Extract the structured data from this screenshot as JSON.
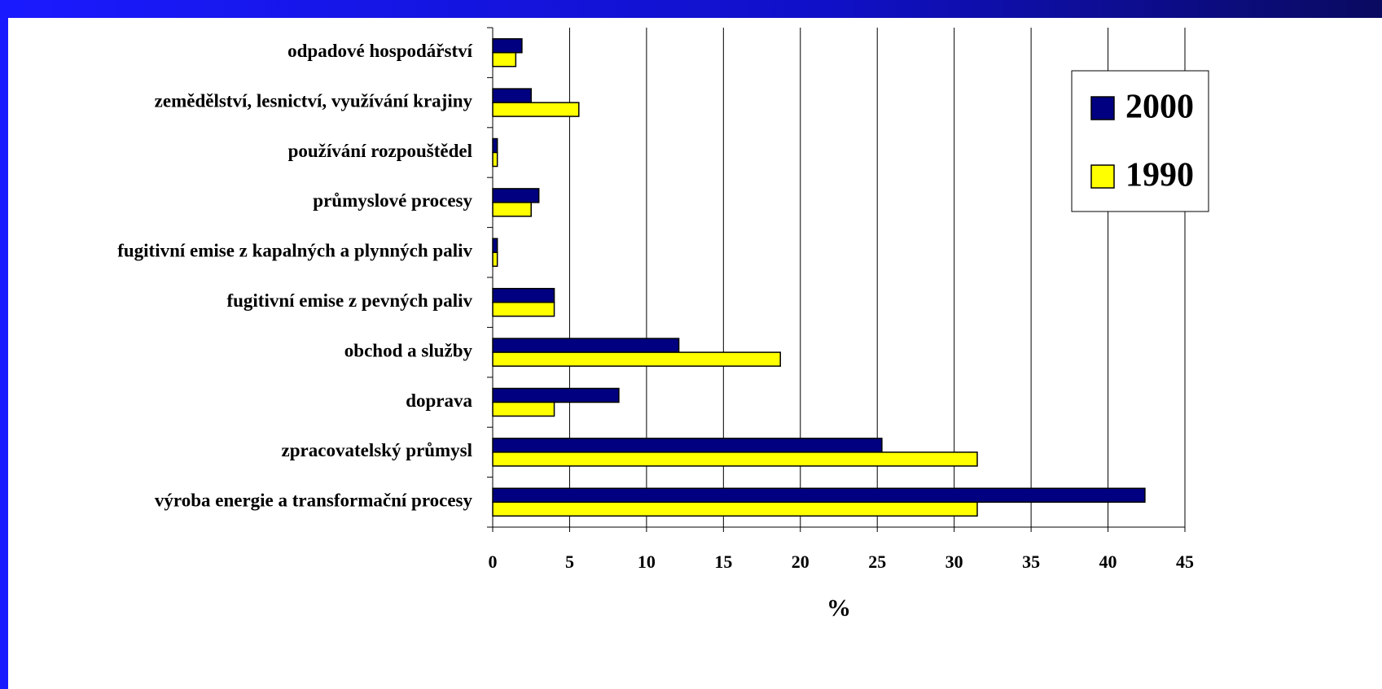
{
  "chart_data": {
    "type": "bar",
    "orientation": "horizontal",
    "categories": [
      "odpadové hospodářství",
      "zemědělství, lesnictví, využívání krajiny",
      "používání rozpouštědel",
      "průmyslové procesy",
      "fugitivní emise z kapalných a plynných paliv",
      "fugitivní emise z pevných paliv",
      "obchod a služby",
      "doprava",
      "zpracovatelský průmysl",
      "výroba energie a transformační procesy"
    ],
    "series": [
      {
        "name": "2000",
        "color": "#000080",
        "values": [
          1.9,
          2.5,
          0.3,
          3.0,
          0.3,
          4.0,
          12.1,
          8.2,
          25.3,
          42.4
        ]
      },
      {
        "name": "1990",
        "color": "#ffff00",
        "values": [
          1.5,
          5.6,
          0.3,
          2.5,
          0.3,
          4.0,
          18.7,
          4.0,
          31.5,
          31.5
        ]
      }
    ],
    "xlabel": "%",
    "xlim": [
      0,
      45
    ],
    "xticks": [
      0,
      5,
      10,
      15,
      20,
      25,
      30,
      35,
      40,
      45
    ],
    "grid": true,
    "legend": "upper right"
  }
}
